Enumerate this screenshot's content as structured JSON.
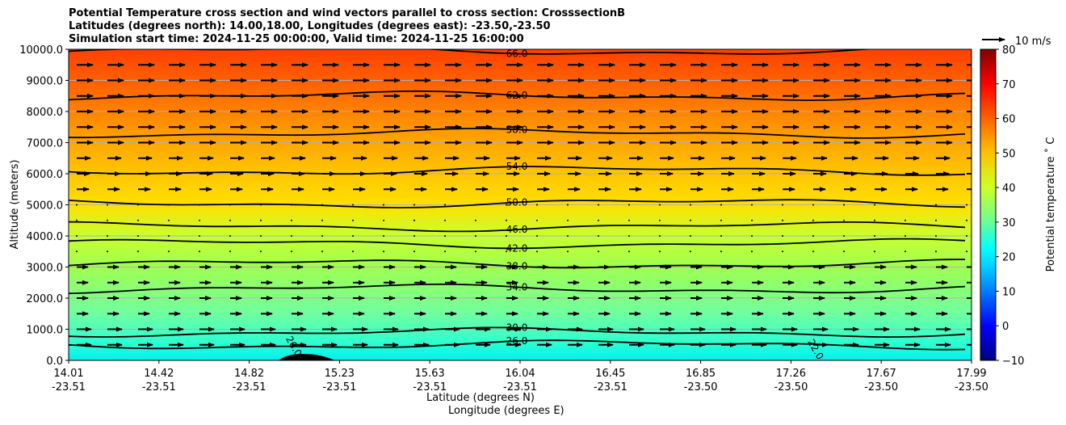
{
  "header": {
    "title_line1": "Potential Temperature cross section and wind vectors parallel to cross section: CrosssectionB",
    "title_line2": "Latitudes (degrees north): 14.00,18.00, Longitudes (degrees east): -23.50,-23.50",
    "title_line3": "Simulation start time: 2024-11-25 00:00:00, Valid time: 2024-11-25 16:00:00"
  },
  "chart_data": {
    "type": "heatmap",
    "subtype": "filled contour cross-section with isolines and wind vectors",
    "xlabel_line1": "Latitude (degrees N)",
    "xlabel_line2": "Longitude (degrees E)",
    "ylabel": "Altitude (meters)",
    "ylim": [
      0,
      10000
    ],
    "yticks": [
      "0.0",
      "1000.0",
      "2000.0",
      "3000.0",
      "4000.0",
      "5000.0",
      "6000.0",
      "7000.0",
      "8000.0",
      "9000.0",
      "10000.0"
    ],
    "xticks_lat": [
      "14.01",
      "14.42",
      "14.82",
      "15.23",
      "15.63",
      "16.04",
      "16.45",
      "16.85",
      "17.26",
      "17.67",
      "17.99"
    ],
    "xticks_lon": [
      "-23.51",
      "-23.51",
      "-23.51",
      "-23.51",
      "-23.51",
      "-23.51",
      "-23.51",
      "-23.50",
      "-23.50",
      "-23.50",
      "-23.50"
    ],
    "grid": "horizontal lines",
    "colorbar": {
      "label": "Potential temperature ˚ C",
      "range": [
        -10,
        80
      ],
      "ticks": [
        "−10",
        "0",
        "10",
        "20",
        "30",
        "40",
        "50",
        "60",
        "70",
        "80"
      ],
      "colormap": "jet"
    },
    "quiver_key": "10 m/s",
    "contours": [
      {
        "level": "26.0",
        "altitude_m": 500
      },
      {
        "level": "30.0",
        "altitude_m": 900
      },
      {
        "level": "34.0",
        "altitude_m": 2300
      },
      {
        "level": "38.0",
        "altitude_m": 3100
      },
      {
        "level": "42.0",
        "altitude_m": 3750
      },
      {
        "level": "46.0",
        "altitude_m": 4300
      },
      {
        "level": "50.0",
        "altitude_m": 5050
      },
      {
        "level": "54.0",
        "altitude_m": 6100
      },
      {
        "level": "58.0",
        "altitude_m": 7300
      },
      {
        "level": "62.0",
        "altitude_m": 8500
      },
      {
        "level": "66.0",
        "altitude_m": 9950
      }
    ],
    "extra_contour_labels": [
      {
        "text": "26.0",
        "lat": 14.99,
        "altitude_m": 400
      },
      {
        "text": "22.0",
        "lat": 17.29,
        "altitude_m": 300
      }
    ],
    "terrain_peak": {
      "lat": 15.06,
      "altitude_m": 200
    }
  }
}
